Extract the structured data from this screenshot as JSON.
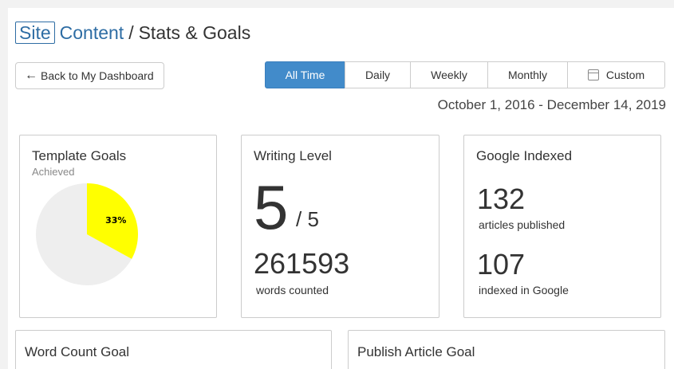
{
  "header": {
    "logo_site": "Site",
    "logo_content": "Content",
    "separator": "/",
    "page_title": "Stats & Goals"
  },
  "toolbar": {
    "back_label": "Back to My Dashboard",
    "ranges": [
      {
        "label": "All Time",
        "active": true
      },
      {
        "label": "Daily",
        "active": false
      },
      {
        "label": "Weekly",
        "active": false
      },
      {
        "label": "Monthly",
        "active": false
      },
      {
        "label": "Custom",
        "active": false
      }
    ],
    "date_range": "October 1, 2016 - December 14, 2019"
  },
  "cards": {
    "template_goals": {
      "title": "Template Goals",
      "subtitle": "Achieved",
      "achieved_percent": 33,
      "achieved_label": "33%",
      "achieved_color": "#ffff00",
      "remaining_color": "#eeeeee"
    },
    "writing_level": {
      "title": "Writing Level",
      "level": "5",
      "level_max": "/ 5",
      "words": "261593",
      "words_label": "words counted"
    },
    "google_indexed": {
      "title": "Google Indexed",
      "published": "132",
      "published_label": "articles published",
      "indexed": "107",
      "indexed_label": "indexed in Google"
    },
    "word_count_goal": {
      "title": "Word Count Goal"
    },
    "publish_article_goal": {
      "title": "Publish Article Goal"
    }
  },
  "colors": {
    "accent": "#428bca",
    "brand": "#2e6da4"
  },
  "icons": {
    "back": "arrow-left-icon",
    "custom": "calendar-icon"
  }
}
